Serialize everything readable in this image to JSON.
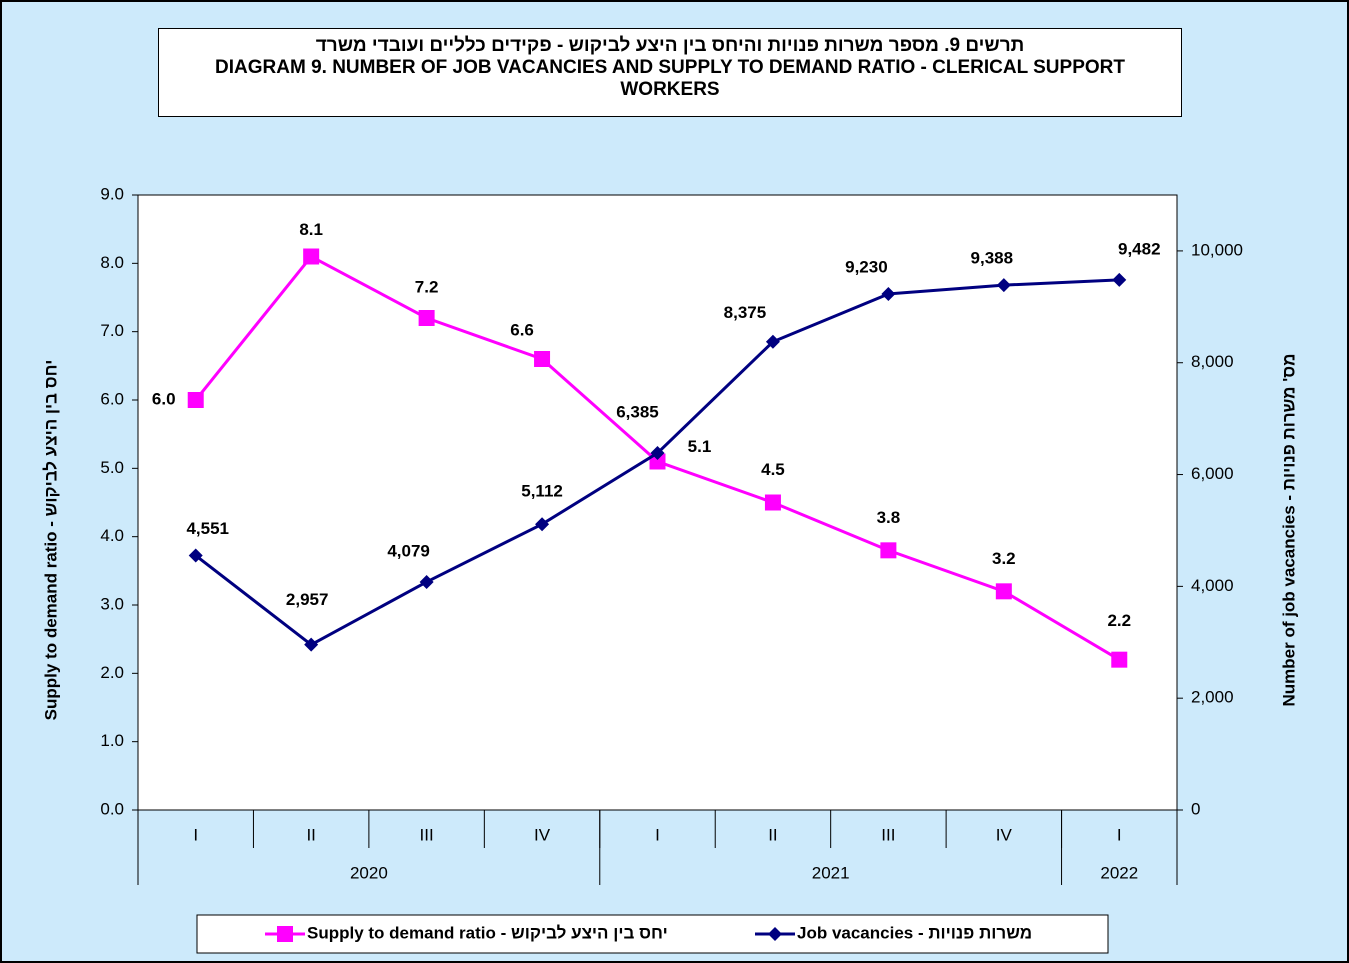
{
  "chart_data": {
    "type": "line",
    "title_hebrew": "תרשים 9. מספר משרות פנויות והיחס בין היצע לביקוש - פקידים כלליים ועובדי משרד",
    "title": "DIAGRAM 9. NUMBER OF JOB VACANCIES AND SUPPLY TO DEMAND RATIO -  CLERICAL SUPPORT WORKERS",
    "y_label": "Supply to demand ratio - יחס בין היצע לביקוש",
    "y2_label": "Number of job vacancies - מס' משרות פנויות",
    "category_groups": [
      {
        "name": "2020",
        "categories": [
          "I",
          "II",
          "III",
          "IV"
        ]
      },
      {
        "name": "2021",
        "categories": [
          "I",
          "II",
          "III",
          "IV"
        ]
      },
      {
        "name": "2022",
        "categories": [
          "I"
        ]
      }
    ],
    "ylim": [
      0,
      9
    ],
    "yticks": [
      {
        "value": 0,
        "label": "0.0"
      },
      {
        "value": 1,
        "label": "1.0"
      },
      {
        "value": 2,
        "label": "2.0"
      },
      {
        "value": 3,
        "label": "3.0"
      },
      {
        "value": 4,
        "label": "4.0"
      },
      {
        "value": 5,
        "label": "5.0"
      },
      {
        "value": 6,
        "label": "6.0"
      },
      {
        "value": 7,
        "label": "7.0"
      },
      {
        "value": 8,
        "label": "8.0"
      },
      {
        "value": 9,
        "label": "9.0"
      }
    ],
    "y2lim": [
      0,
      11000
    ],
    "y2ticks": [
      0,
      {
        "value": 2000,
        "label": "2,000"
      },
      {
        "value": 4000,
        "label": "4,000"
      },
      {
        "value": 6000,
        "label": "6,000"
      },
      {
        "value": 8000,
        "label": "8,000"
      },
      {
        "value": 10000,
        "label": "10,000"
      }
    ],
    "series": [
      {
        "name": "Supply to demand ratio - יחס בין היצע לביקוש",
        "color": "#ff00ff",
        "marker": "square",
        "values": [
          6.0,
          8.1,
          7.2,
          6.6,
          5.1,
          4.5,
          3.8,
          3.2,
          2.2
        ],
        "value_labels": [
          "6.0",
          "8.1",
          "7.2",
          "6.6",
          "5.1",
          "4.5",
          "3.8",
          "3.2",
          "2.2"
        ]
      },
      {
        "name": "Job vacancies - משרות פנויות",
        "color": "#000080",
        "marker": "diamond",
        "axis": "y2",
        "values": [
          4551,
          2957,
          4079,
          5112,
          6385,
          8375,
          9230,
          9388,
          9482
        ],
        "value_labels": [
          "4,551",
          "2,957",
          "4,079",
          "5,112",
          "6,385",
          "8,375",
          "9,230",
          "9,388",
          "9,482"
        ]
      }
    ],
    "legend": "bottom"
  }
}
